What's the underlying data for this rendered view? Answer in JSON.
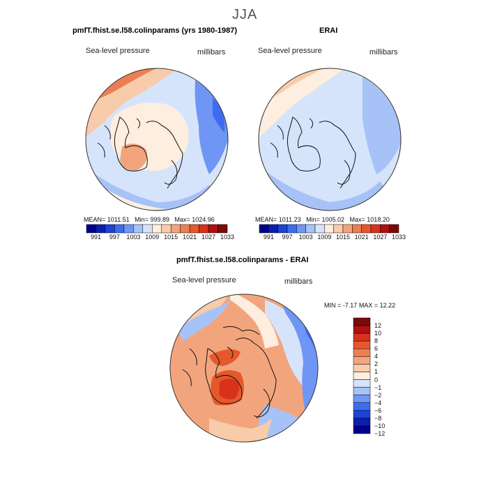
{
  "page_title": "JJA",
  "colors": {
    "palette": [
      "#00008b",
      "#0a1fb0",
      "#1a44d8",
      "#3e6cf0",
      "#6f95f5",
      "#a7c2f7",
      "#d6e4fb",
      "#fdeee0",
      "#f8cbaa",
      "#f2a57c",
      "#ec7f52",
      "#e6582c",
      "#d8321a",
      "#b01010",
      "#7a0b0b"
    ],
    "land_outline": "#111111",
    "circle_outline": "#333333"
  },
  "chart_data": [
    {
      "type": "contour-map",
      "title": "pmfT.fhist.se.l58.colinparams (yrs 1980-1987)",
      "variable": "Sea-level pressure",
      "units": "millibars",
      "stats": {
        "mean_label": "MEAN=",
        "mean": "1011.51",
        "min_label": "Min=",
        "min": "999.89",
        "max_label": "Max=",
        "max": "1024.96"
      },
      "colorbar_ticks": [
        "991",
        "997",
        "1003",
        "1009",
        "1015",
        "1021",
        "1027",
        "1033"
      ]
    },
    {
      "type": "contour-map",
      "title": "ERAI",
      "variable": "Sea-level pressure",
      "units": "millibars",
      "stats": {
        "mean_label": "MEAN=",
        "mean": "1011.23",
        "min_label": "Min=",
        "min": "1005.02",
        "max_label": "Max=",
        "max": "1018.20"
      },
      "colorbar_ticks": [
        "991",
        "997",
        "1003",
        "1009",
        "1015",
        "1021",
        "1027",
        "1033"
      ]
    },
    {
      "type": "contour-map",
      "title": "pmfT.fhist.se.l58.colinparams - ERAI",
      "variable": "Sea-level pressure",
      "units": "millibars",
      "stats": {
        "min_label": "MIN =",
        "min": "-7.17",
        "max_label": "MAX =",
        "max": "12.22"
      },
      "colorbar_ticks": [
        "12",
        "10",
        "8",
        "6",
        "4",
        "2",
        "1",
        "0",
        "−1",
        "−2",
        "−4",
        "−6",
        "−8",
        "−10",
        "−12"
      ]
    }
  ]
}
